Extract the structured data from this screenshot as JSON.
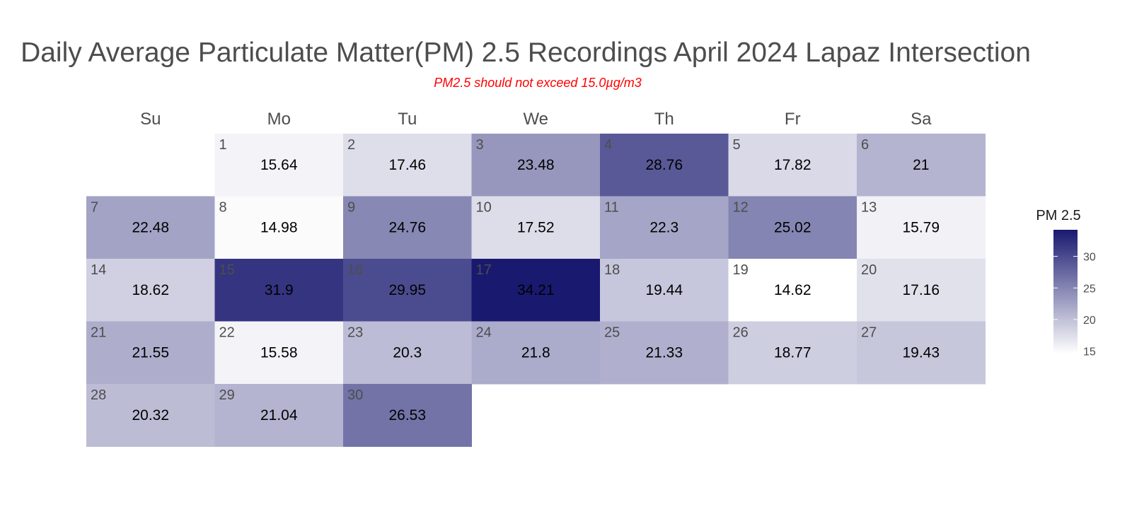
{
  "chart_data": {
    "type": "heatmap",
    "title": "Daily Average Particulate Matter(PM) 2.5 Recordings April 2024 Lapaz Intersection",
    "subtitle": "PM2.5 should not exceed 15.0µg/m3",
    "weekdays": [
      "Su",
      "Mo",
      "Tu",
      "We",
      "Th",
      "Fr",
      "Sa"
    ],
    "first_weekday_index": 1,
    "days": [
      1,
      2,
      3,
      4,
      5,
      6,
      7,
      8,
      9,
      10,
      11,
      12,
      13,
      14,
      15,
      16,
      17,
      18,
      19,
      20,
      21,
      22,
      23,
      24,
      25,
      26,
      27,
      28,
      29,
      30
    ],
    "value_labels": [
      "15.64",
      "17.46",
      "23.48",
      "28.76",
      "17.82",
      "21",
      "22.48",
      "14.98",
      "24.76",
      "17.52",
      "22.3",
      "25.02",
      "15.79",
      "18.62",
      "31.9",
      "29.95",
      "34.21",
      "19.44",
      "14.62",
      "17.16",
      "21.55",
      "15.58",
      "20.3",
      "21.8",
      "21.33",
      "18.77",
      "19.43",
      "20.32",
      "21.04",
      "26.53"
    ],
    "values": [
      15.64,
      17.46,
      23.48,
      28.76,
      17.82,
      21,
      22.48,
      14.98,
      24.76,
      17.52,
      22.3,
      25.02,
      15.79,
      18.62,
      31.9,
      29.95,
      34.21,
      19.44,
      14.62,
      17.16,
      21.55,
      15.58,
      20.3,
      21.8,
      21.33,
      18.77,
      19.43,
      20.32,
      21.04,
      26.53
    ],
    "legend": {
      "title": "PM 2.5",
      "ticks": [
        "15",
        "20",
        "25",
        "30"
      ],
      "tick_values": [
        15,
        20,
        25,
        30
      ],
      "range": [
        14.62,
        34.21
      ],
      "low_color": "#ffffff",
      "high_color": "#191970"
    },
    "grid": false
  }
}
